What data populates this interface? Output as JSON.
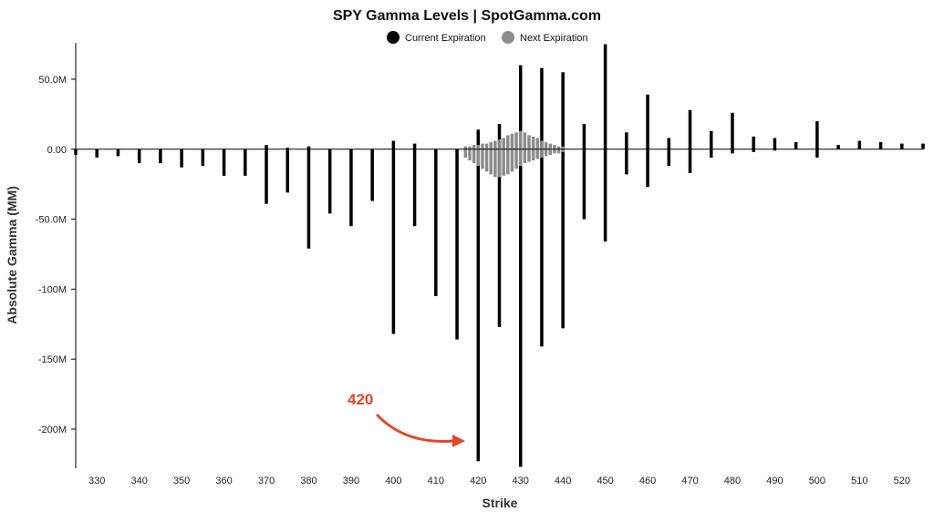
{
  "chart_data": {
    "type": "bar",
    "title": "SPY Gamma Levels | SpotGamma.com",
    "xlabel": "Strike",
    "ylabel": "Absolute Gamma (MM)",
    "xlim": [
      325,
      525
    ],
    "ylim": [
      -228,
      76
    ],
    "x_ticks": [
      "330",
      "340",
      "350",
      "360",
      "370",
      "380",
      "390",
      "400",
      "410",
      "420",
      "430",
      "440",
      "450",
      "460",
      "470",
      "480",
      "490",
      "500",
      "510",
      "520"
    ],
    "x_tick_values": [
      330,
      340,
      350,
      360,
      370,
      380,
      390,
      400,
      410,
      420,
      430,
      440,
      450,
      460,
      470,
      480,
      490,
      500,
      510,
      520
    ],
    "y_ticks": [
      "50.0M",
      "0.00",
      "-50.0M",
      "-100M",
      "-150M",
      "-200M"
    ],
    "y_tick_values": [
      50,
      0,
      -50,
      -100,
      -150,
      -200
    ],
    "legend": {
      "placement": "top-center"
    },
    "colors": {
      "current": "#000000",
      "next": "#8c8c8c",
      "annotation": "#e4472a"
    },
    "series": [
      {
        "name": "Current Expiration",
        "x": [
          325,
          330,
          335,
          340,
          345,
          350,
          355,
          360,
          365,
          370,
          375,
          380,
          385,
          390,
          395,
          400,
          405,
          410,
          415,
          420,
          425,
          430,
          435,
          440,
          445,
          450,
          455,
          460,
          465,
          470,
          475,
          480,
          485,
          490,
          495,
          500,
          505,
          510,
          515,
          520,
          525
        ],
        "pos": [
          0,
          0,
          0,
          0,
          0,
          0,
          0,
          0,
          0,
          3,
          1,
          2,
          0,
          0,
          0,
          6,
          4,
          0,
          0,
          14,
          18,
          60,
          58,
          55,
          18,
          75,
          12,
          39,
          8,
          28,
          13,
          26,
          9,
          8,
          5,
          20,
          3,
          6,
          5,
          4,
          4
        ],
        "neg": [
          -4,
          -6,
          -5,
          -10,
          -10,
          -13,
          -12,
          -19,
          -19,
          -39,
          -31,
          -71,
          -46,
          -55,
          -37,
          -132,
          -55,
          -105,
          -136,
          -223,
          -127,
          -227,
          -141,
          -128,
          -50,
          -66,
          -18,
          -27,
          -12,
          -17,
          -6,
          -3,
          -2,
          -1,
          0,
          -6,
          0,
          0,
          0,
          0,
          0
        ]
      },
      {
        "name": "Next Expiration",
        "x": [
          417,
          418,
          419,
          420,
          421,
          422,
          423,
          424,
          425,
          426,
          427,
          428,
          429,
          430,
          431,
          432,
          433,
          434,
          435,
          436,
          437,
          438,
          439,
          440
        ],
        "pos": [
          2,
          2,
          3,
          3,
          4,
          4,
          5,
          6,
          7,
          8,
          10,
          11,
          12,
          13,
          12,
          10,
          9,
          8,
          6,
          5,
          4,
          3,
          2,
          2
        ],
        "neg": [
          -6,
          -8,
          -10,
          -12,
          -14,
          -16,
          -18,
          -20,
          -20,
          -19,
          -18,
          -16,
          -14,
          -12,
          -10,
          -9,
          -8,
          -7,
          -6,
          -5,
          -4,
          -3,
          -3,
          -2
        ]
      }
    ],
    "annotation": {
      "text": "420",
      "x": 420
    }
  }
}
